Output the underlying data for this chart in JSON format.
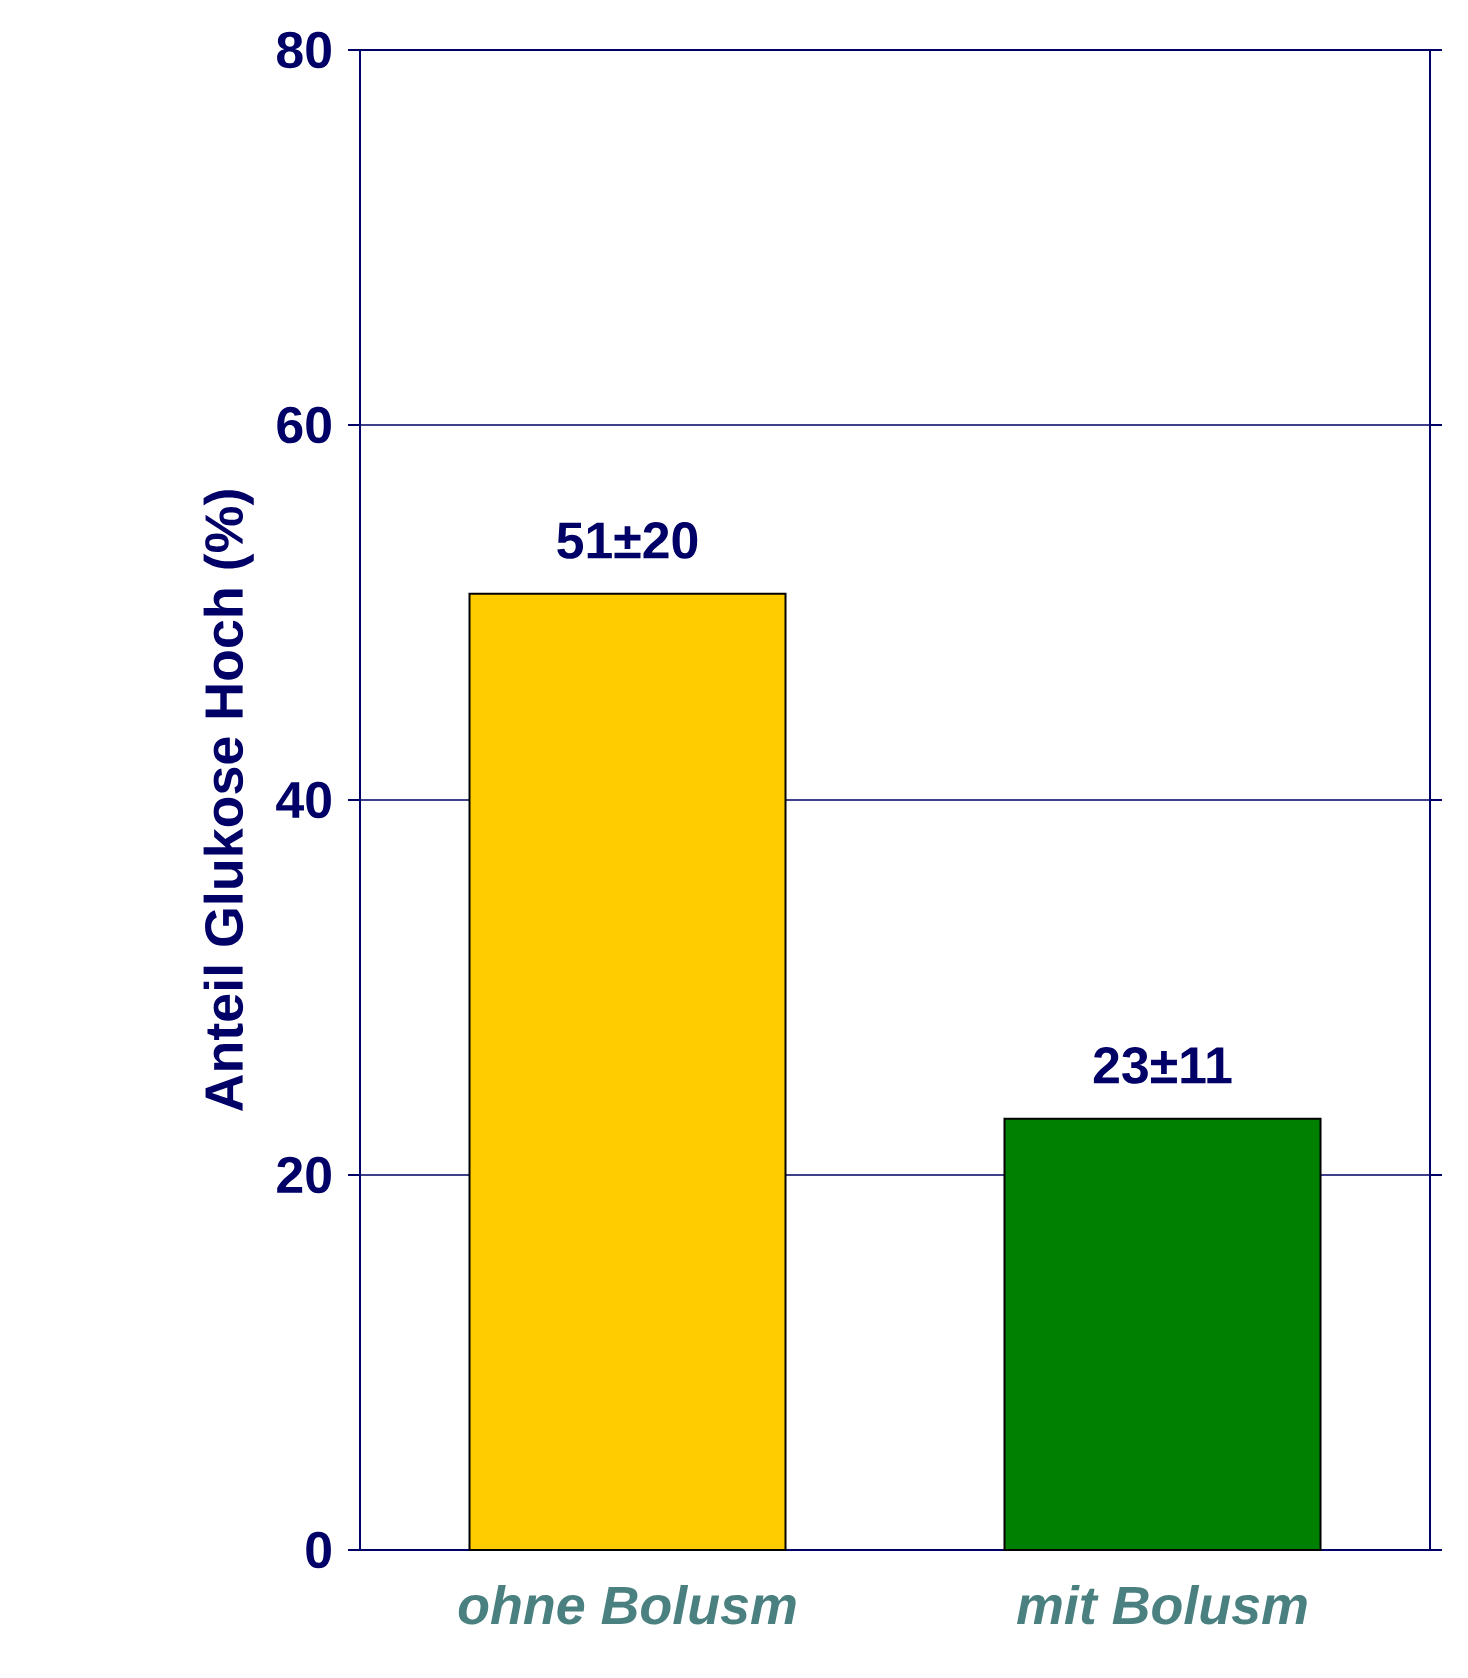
{
  "chart_data": {
    "type": "bar",
    "ylabel": "Anteil Glukose Hoch (%)",
    "categories": [
      "ohne Bolusm",
      "mit Bolusm"
    ],
    "values": [
      51,
      23
    ],
    "colors": [
      "#ffcc00",
      "#008000"
    ],
    "value_labels": [
      "51±20",
      "23±11"
    ],
    "ylim": [
      0,
      80
    ],
    "yticks": [
      0,
      20,
      40,
      60,
      80
    ],
    "grid": "y"
  }
}
